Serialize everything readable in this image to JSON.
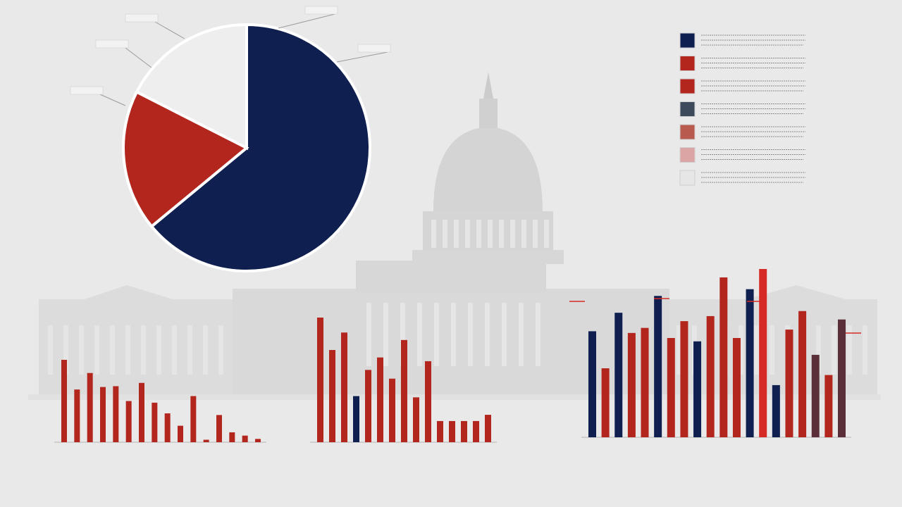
{
  "colors": {
    "background": "#e9e9e9",
    "navy": "#0f1f50",
    "red": "#b3261e",
    "bright_red": "#d52b24",
    "light": "#eeeeee",
    "slate": "#3c4a5c",
    "muted_red": "#b95a4f",
    "pink": "#dca5a5",
    "pale": "#e6e6e6",
    "maroon": "#5a2f3a",
    "capitol": "#cfcfcf"
  },
  "background_image": {
    "icon": "capitol-building-silhouette"
  },
  "chart_data": [
    {
      "type": "pie",
      "title": "",
      "slices": [
        {
          "value": 64,
          "color": "#0f1f50"
        },
        {
          "value": 18.5,
          "color": "#b3261e"
        },
        {
          "value": 17.5,
          "color": "#eeeeee"
        }
      ],
      "slice_labels": [
        "",
        "",
        "",
        "",
        ""
      ]
    },
    {
      "type": "bar",
      "title": "",
      "ylabel": "",
      "ylim": [
        0,
        100
      ],
      "y_ticks": [
        "",
        ""
      ],
      "categories": [
        "",
        "",
        "",
        "",
        "",
        "",
        "",
        "",
        "",
        "",
        "",
        "",
        "",
        "",
        "",
        ""
      ],
      "x_tick_labels": [
        "",
        "",
        "",
        "",
        "",
        "",
        "",
        "",
        ""
      ],
      "values": [
        100,
        64,
        84,
        67,
        68,
        50,
        72,
        48,
        35,
        20,
        56,
        3,
        33,
        12,
        8,
        4
      ],
      "bar_colors": [
        "red",
        "red",
        "red",
        "red",
        "red",
        "red",
        "red",
        "red",
        "red",
        "red",
        "red",
        "red",
        "red",
        "red",
        "red",
        "red"
      ]
    },
    {
      "type": "bar",
      "title": "",
      "ylabel": "",
      "ylim": [
        0,
        100
      ],
      "y_ticks": [
        ""
      ],
      "categories": [
        "",
        "",
        "",
        "",
        "",
        "",
        "",
        "",
        "",
        "",
        "",
        "",
        "",
        "",
        ""
      ],
      "x_tick_labels": [
        "",
        "",
        "",
        "",
        "",
        ""
      ],
      "values": [
        100,
        74,
        88,
        37,
        58,
        68,
        51,
        82,
        36,
        65,
        17,
        17,
        17,
        17,
        22
      ],
      "bar_colors": [
        "red",
        "red",
        "red",
        "navy",
        "red",
        "red",
        "red",
        "red",
        "red",
        "red",
        "red",
        "red",
        "red",
        "red",
        "red"
      ]
    },
    {
      "type": "bar",
      "title": "",
      "ylabel": "",
      "ylim": [
        0,
        100
      ],
      "y_ticks": [
        "",
        "",
        "",
        "",
        "",
        ""
      ],
      "categories": [
        "",
        "",
        "",
        "",
        "",
        "",
        "",
        "",
        "",
        "",
        "",
        "",
        "",
        "",
        "",
        "",
        "",
        "",
        "",
        ""
      ],
      "x_tick_labels": [
        "",
        "",
        "",
        ""
      ],
      "values": [
        63,
        41,
        74,
        62,
        65,
        84,
        59,
        69,
        57,
        72,
        95,
        59,
        88,
        100,
        31,
        64,
        75,
        49,
        37,
        70
      ],
      "bar_colors": [
        "navy",
        "red",
        "navy",
        "red",
        "red",
        "navy",
        "red",
        "red",
        "navy",
        "red",
        "red",
        "red",
        "navy",
        "bright_red",
        "navy",
        "red",
        "red",
        "maroon",
        "red",
        "maroon"
      ]
    }
  ],
  "legend": {
    "placement": "top-right",
    "entries": [
      {
        "color": "#0f1f50",
        "label": ""
      },
      {
        "color": "#b3261e",
        "label": ""
      },
      {
        "color": "#b3261e",
        "label": ""
      },
      {
        "color": "#3c4a5c",
        "label": ""
      },
      {
        "color": "#b95a4f",
        "label": ""
      },
      {
        "color": "#dca5a5",
        "label": ""
      },
      {
        "color": "#e6e6e6",
        "label": ""
      }
    ]
  }
}
